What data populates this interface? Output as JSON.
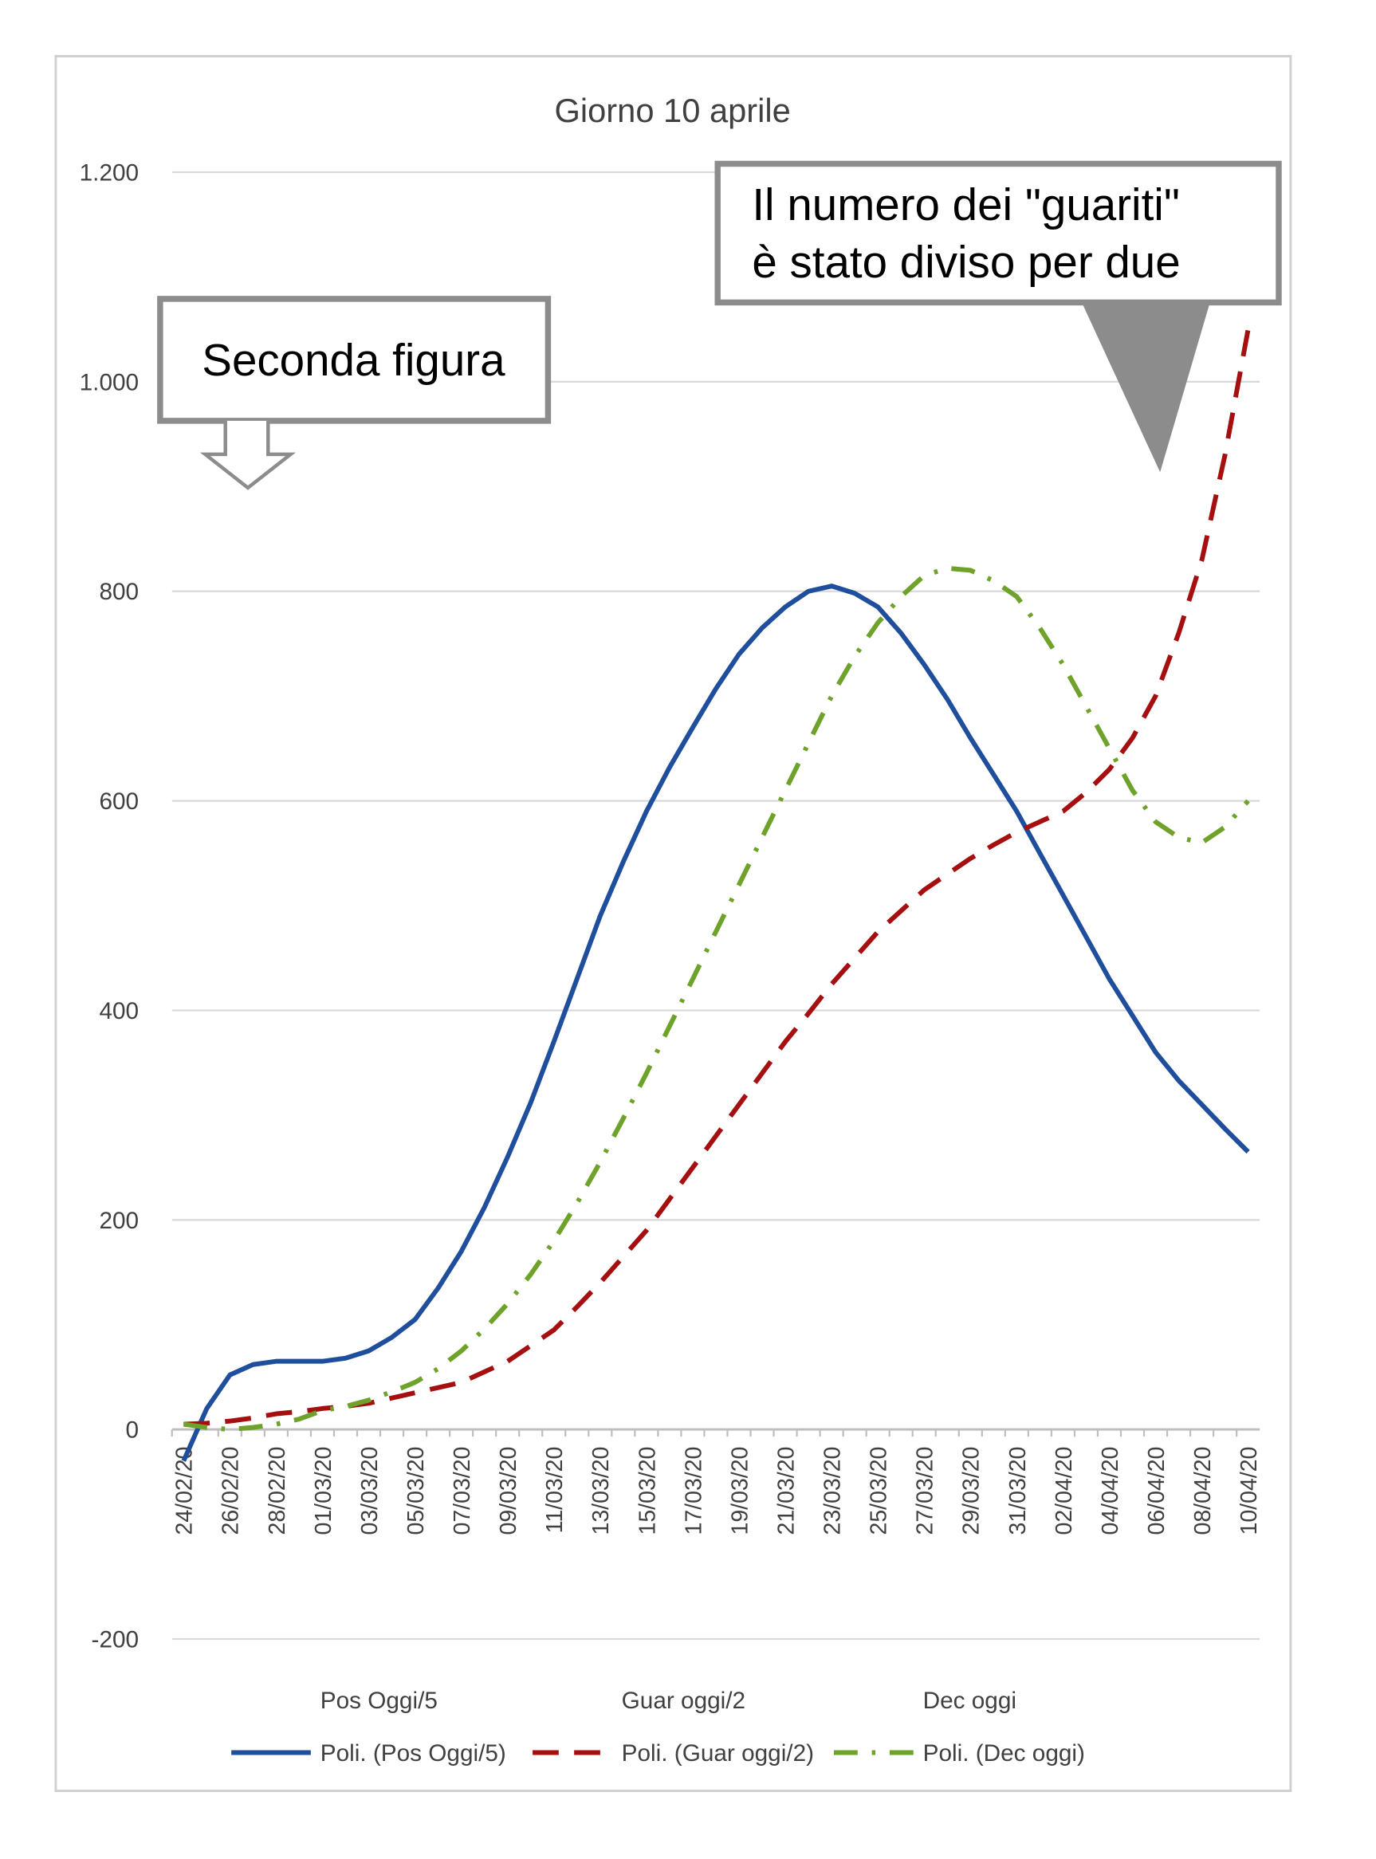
{
  "chart_data": {
    "type": "line",
    "title": "Giorno 10 aprile",
    "categories": [
      "24/02/20",
      null,
      "26/02/20",
      null,
      "28/02/20",
      null,
      "01/03/20",
      null,
      "03/03/20",
      null,
      "05/03/20",
      null,
      "07/03/20",
      null,
      "09/03/20",
      null,
      "11/03/20",
      null,
      "13/03/20",
      null,
      "15/03/20",
      null,
      "17/03/20",
      null,
      "19/03/20",
      null,
      "21/03/20",
      null,
      "23/03/20",
      null,
      "25/03/20",
      null,
      "27/03/20",
      null,
      "29/03/20",
      null,
      "31/03/20",
      null,
      "02/04/20",
      null,
      "04/04/20",
      null,
      "06/04/20",
      null,
      "08/04/20",
      null,
      "10/04/20"
    ],
    "base_series": [
      {
        "name": "Pos Oggi/5"
      },
      {
        "name": "Guar oggi/2"
      },
      {
        "name": "Dec oggi"
      }
    ],
    "series": [
      {
        "name": "Poli. (Pos Oggi/5)",
        "color": "#1f4e9c",
        "dash": "solid",
        "values": [
          -30,
          20,
          52,
          62,
          65,
          65,
          65,
          68,
          75,
          88,
          105,
          135,
          170,
          212,
          260,
          312,
          370,
          430,
          490,
          542,
          590,
          632,
          670,
          707,
          740,
          765,
          785,
          800,
          805,
          798,
          785,
          760,
          730,
          697,
          660,
          625,
          590,
          550,
          510,
          470,
          430,
          395,
          360,
          333,
          310,
          287,
          265
        ]
      },
      {
        "name": "Poli. (Guar oggi/2)",
        "color": "#a50f0f",
        "dash": "dashed",
        "values": [
          5,
          6,
          8,
          11,
          15,
          17,
          20,
          22,
          25,
          30,
          35,
          40,
          45,
          55,
          65,
          80,
          95,
          117,
          140,
          165,
          190,
          220,
          250,
          280,
          310,
          340,
          370,
          397,
          425,
          450,
          475,
          495,
          515,
          530,
          545,
          558,
          570,
          580,
          590,
          608,
          630,
          660,
          700,
          760,
          830,
          930,
          1050
        ]
      },
      {
        "name": "Poli. (Dec oggi)",
        "color": "#6fa22a",
        "dash": "dashdot",
        "values": [
          5,
          2,
          0,
          2,
          5,
          10,
          18,
          22,
          28,
          36,
          45,
          58,
          75,
          96,
          120,
          148,
          180,
          216,
          255,
          297,
          340,
          385,
          430,
          475,
          520,
          565,
          610,
          655,
          700,
          738,
          770,
          795,
          815,
          822,
          820,
          810,
          795,
          765,
          730,
          690,
          650,
          610,
          580,
          565,
          560,
          575,
          600
        ]
      }
    ],
    "ylim": [
      -200,
      1200
    ],
    "yticks": [
      -200,
      0,
      200,
      400,
      600,
      800,
      {
        "value": 1000,
        "label": "1.000"
      },
      {
        "value": 1200,
        "label": "1.200"
      }
    ],
    "grid": true,
    "legend": "bottom",
    "annotations": [
      {
        "lines": [
          "Seconda figura"
        ]
      },
      {
        "lines": [
          "Il numero dei \"guariti\"",
          "è stato diviso per due"
        ]
      }
    ]
  }
}
